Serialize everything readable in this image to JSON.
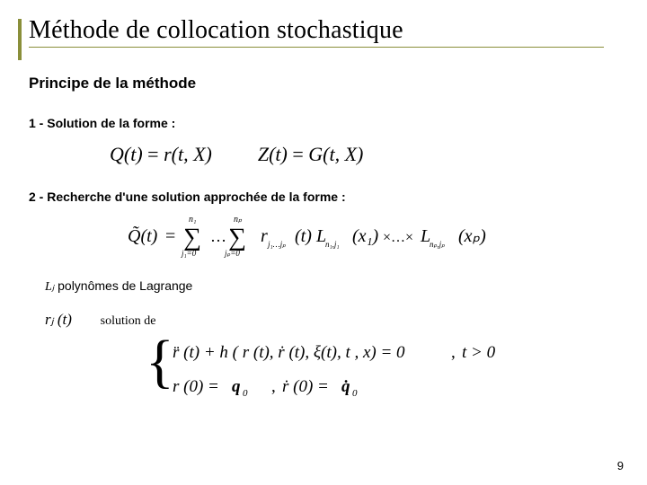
{
  "accent_color": "#8a8f3a",
  "title": "Méthode de collocation stochastique",
  "subtitle": "Principe de la méthode",
  "step1": "1 - Solution de la forme :",
  "step2": "2 - Recherche d'une solution approchée de la forme :",
  "lagrange_text": " polynômes de Lagrange",
  "lagrange_symbol": "Lⱼ",
  "rj_symbol": "rⱼ (t)",
  "solution_de": "solution de",
  "page_number": "9",
  "eq1": {
    "lhs1": "Q(t)",
    "rhs1": "r(t, X)",
    "lhs2": "Z(t)",
    "rhs2": "G(t, X)"
  },
  "eq2": {
    "n1": "n₁",
    "np": "nₚ",
    "text_r": "r",
    "text_L": "L",
    "text_x": "x"
  },
  "system": {
    "line1_a": "r̈ (t) + h ( r (t), ṙ (t), ξ(t), t , x) = 0",
    "line1_b": ", t > 0",
    "line2_a": "r (0) = q₀",
    "line2_b": ", ṙ (0) = q̇₀"
  }
}
